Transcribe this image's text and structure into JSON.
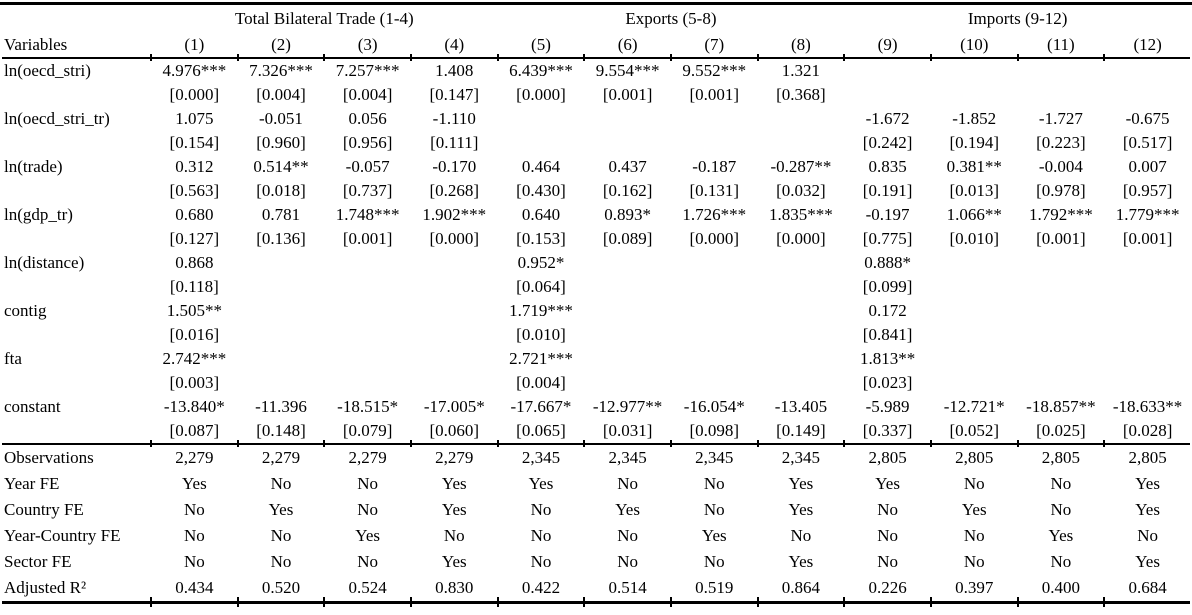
{
  "table": {
    "groups": [
      {
        "label": "Total Bilateral Trade (1-4)",
        "span": 4
      },
      {
        "label": "Exports (5-8)",
        "span": 4
      },
      {
        "label": "Imports (9-12)",
        "span": 4
      }
    ],
    "variables_label": "Variables",
    "columns": [
      "(1)",
      "(2)",
      "(3)",
      "(4)",
      "(5)",
      "(6)",
      "(7)",
      "(8)",
      "(9)",
      "(10)",
      "(11)",
      "(12)"
    ],
    "rows": [
      {
        "name": "ln(oecd_stri)",
        "coef": [
          "4.976***",
          "7.326***",
          "7.257***",
          "1.408",
          "6.439***",
          "9.554***",
          "9.552***",
          "1.321",
          "",
          "",
          "",
          ""
        ],
        "p": [
          "[0.000]",
          "[0.004]",
          "[0.004]",
          "[0.147]",
          "[0.000]",
          "[0.001]",
          "[0.001]",
          "[0.368]",
          "",
          "",
          "",
          ""
        ]
      },
      {
        "name": "ln(oecd_stri_tr)",
        "coef": [
          "1.075",
          "-0.051",
          "0.056",
          "-1.110",
          "",
          "",
          "",
          "",
          "-1.672",
          "-1.852",
          "-1.727",
          "-0.675"
        ],
        "p": [
          "[0.154]",
          "[0.960]",
          "[0.956]",
          "[0.111]",
          "",
          "",
          "",
          "",
          "[0.242]",
          "[0.194]",
          "[0.223]",
          "[0.517]"
        ]
      },
      {
        "name": "ln(trade)",
        "coef": [
          "0.312",
          "0.514**",
          "-0.057",
          "-0.170",
          "0.464",
          "0.437",
          "-0.187",
          "-0.287**",
          "0.835",
          "0.381**",
          "-0.004",
          "0.007"
        ],
        "p": [
          "[0.563]",
          "[0.018]",
          "[0.737]",
          "[0.268]",
          "[0.430]",
          "[0.162]",
          "[0.131]",
          "[0.032]",
          "[0.191]",
          "[0.013]",
          "[0.978]",
          "[0.957]"
        ]
      },
      {
        "name": "ln(gdp_tr)",
        "coef": [
          "0.680",
          "0.781",
          "1.748***",
          "1.902***",
          "0.640",
          "0.893*",
          "1.726***",
          "1.835***",
          "-0.197",
          "1.066**",
          "1.792***",
          "1.779***"
        ],
        "p": [
          "[0.127]",
          "[0.136]",
          "[0.001]",
          "[0.000]",
          "[0.153]",
          "[0.089]",
          "[0.000]",
          "[0.000]",
          "[0.775]",
          "[0.010]",
          "[0.001]",
          "[0.001]"
        ]
      },
      {
        "name": "ln(distance)",
        "coef": [
          "0.868",
          "",
          "",
          "",
          "0.952*",
          "",
          "",
          "",
          "0.888*",
          "",
          "",
          ""
        ],
        "p": [
          "[0.118]",
          "",
          "",
          "",
          "[0.064]",
          "",
          "",
          "",
          "[0.099]",
          "",
          "",
          ""
        ]
      },
      {
        "name": "contig",
        "coef": [
          "1.505**",
          "",
          "",
          "",
          "1.719***",
          "",
          "",
          "",
          "0.172",
          "",
          "",
          ""
        ],
        "p": [
          "[0.016]",
          "",
          "",
          "",
          "[0.010]",
          "",
          "",
          "",
          "[0.841]",
          "",
          "",
          ""
        ]
      },
      {
        "name": "fta",
        "coef": [
          "2.742***",
          "",
          "",
          "",
          "2.721***",
          "",
          "",
          "",
          "1.813**",
          "",
          "",
          ""
        ],
        "p": [
          "[0.003]",
          "",
          "",
          "",
          "[0.004]",
          "",
          "",
          "",
          "[0.023]",
          "",
          "",
          ""
        ]
      },
      {
        "name": "constant",
        "coef": [
          "-13.840*",
          "-11.396",
          "-18.515*",
          "-17.005*",
          "-17.667*",
          "-12.977**",
          "-16.054*",
          "-13.405",
          "-5.989",
          "-12.721*",
          "-18.857**",
          "-18.633**"
        ],
        "p": [
          "[0.087]",
          "[0.148]",
          "[0.079]",
          "[0.060]",
          "[0.065]",
          "[0.031]",
          "[0.098]",
          "[0.149]",
          "[0.337]",
          "[0.052]",
          "[0.025]",
          "[0.028]"
        ]
      }
    ],
    "footer": [
      {
        "name": "Observations",
        "values": [
          "2,279",
          "2,279",
          "2,279",
          "2,279",
          "2,345",
          "2,345",
          "2,345",
          "2,345",
          "2,805",
          "2,805",
          "2,805",
          "2,805"
        ]
      },
      {
        "name": "Year FE",
        "values": [
          "Yes",
          "No",
          "No",
          "Yes",
          "Yes",
          "No",
          "No",
          "Yes",
          "Yes",
          "No",
          "No",
          "Yes"
        ]
      },
      {
        "name": "Country FE",
        "values": [
          "No",
          "Yes",
          "No",
          "Yes",
          "No",
          "Yes",
          "No",
          "Yes",
          "No",
          "Yes",
          "No",
          "Yes"
        ]
      },
      {
        "name": "Year-Country FE",
        "values": [
          "No",
          "No",
          "Yes",
          "No",
          "No",
          "No",
          "Yes",
          "No",
          "No",
          "No",
          "Yes",
          "No"
        ]
      },
      {
        "name": "Sector FE",
        "values": [
          "No",
          "No",
          "No",
          "Yes",
          "No",
          "No",
          "No",
          "Yes",
          "No",
          "No",
          "No",
          "Yes"
        ]
      },
      {
        "name": "Adjusted R²",
        "values": [
          "0.434",
          "0.520",
          "0.524",
          "0.830",
          "0.422",
          "0.514",
          "0.519",
          "0.864",
          "0.226",
          "0.397",
          "0.400",
          "0.684"
        ]
      }
    ]
  }
}
